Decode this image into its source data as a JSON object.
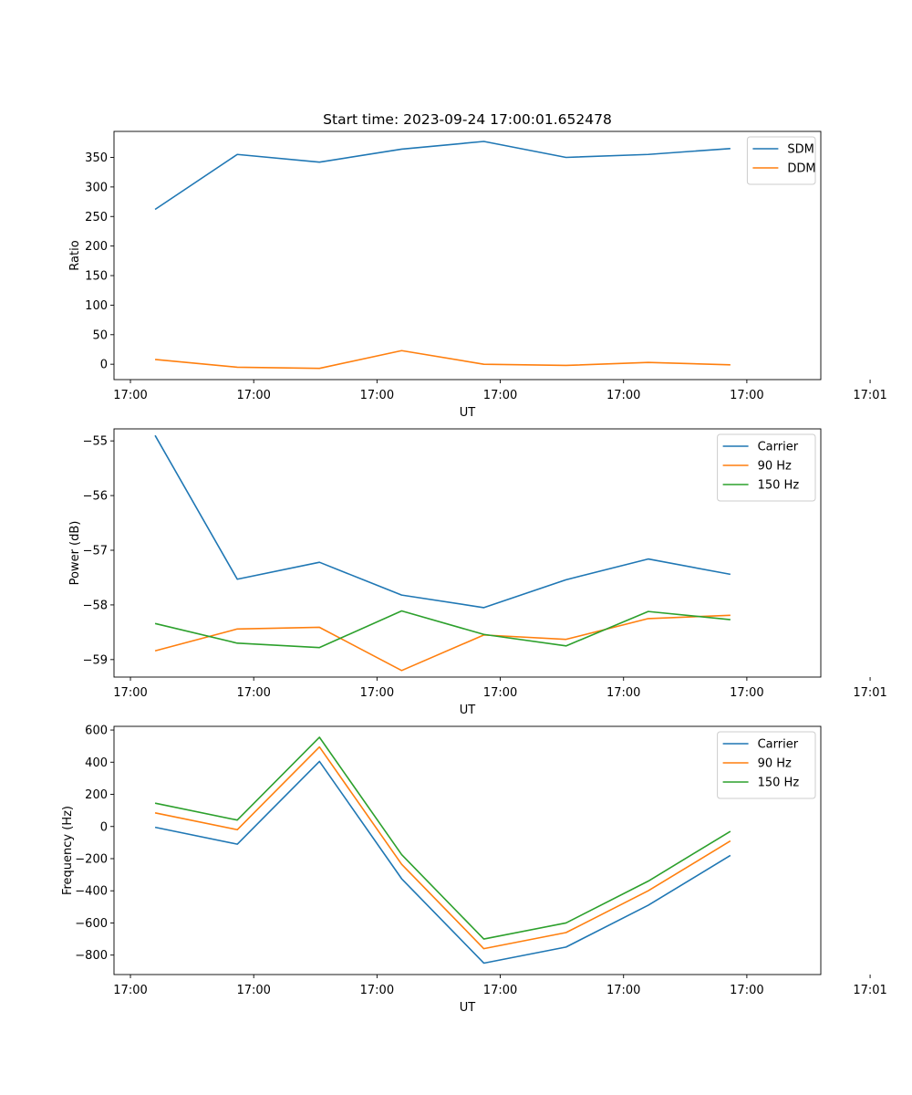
{
  "chart_data": [
    {
      "type": "line",
      "title": "Start time: 2023-09-24 17:00:01.652478",
      "xlabel": "UT",
      "ylabel": "Ratio",
      "legend": "top-right",
      "grid": false,
      "x": [
        1,
        2,
        3,
        4,
        5,
        6,
        7,
        8
      ],
      "xlim": [
        0.5,
        9.1
      ],
      "xticks": [
        0.7,
        2.2,
        3.7,
        5.2,
        6.7,
        8.2,
        9.7
      ],
      "xtick_labels": [
        "17:00",
        "17:00",
        "17:00",
        "17:00",
        "17:00",
        "17:00",
        "17:01"
      ],
      "ylim": [
        -26,
        394
      ],
      "yticks": [
        0,
        50,
        100,
        150,
        200,
        250,
        300,
        350
      ],
      "ytick_labels": [
        "0",
        "50",
        "100",
        "150",
        "200",
        "250",
        "300",
        "350"
      ],
      "series": [
        {
          "name": "SDM",
          "color": "#1f77b4",
          "values": [
            262,
            355,
            342,
            364,
            377,
            350,
            355,
            365
          ]
        },
        {
          "name": "DDM",
          "color": "#ff7f0e",
          "values": [
            8,
            -5,
            -7,
            23,
            0,
            -2,
            3,
            -1
          ]
        }
      ]
    },
    {
      "type": "line",
      "title": "",
      "xlabel": "UT",
      "ylabel": "Power (dB)",
      "legend": "top-right",
      "grid": false,
      "x": [
        1,
        2,
        3,
        4,
        5,
        6,
        7,
        8
      ],
      "xlim": [
        0.5,
        9.1
      ],
      "xticks": [
        0.7,
        2.2,
        3.7,
        5.2,
        6.7,
        8.2,
        9.7
      ],
      "xtick_labels": [
        "17:00",
        "17:00",
        "17:00",
        "17:00",
        "17:00",
        "17:00",
        "17:01"
      ],
      "ylim": [
        -59.32,
        -54.78
      ],
      "yticks": [
        -59,
        -58,
        -57,
        -56,
        -55
      ],
      "ytick_labels": [
        "−59",
        "−58",
        "−57",
        "−56",
        "−55"
      ],
      "series": [
        {
          "name": "Carrier",
          "color": "#1f77b4",
          "values": [
            -54.9,
            -57.53,
            -57.22,
            -57.82,
            -58.05,
            -57.54,
            -57.16,
            -57.44
          ]
        },
        {
          "name": "90 Hz",
          "color": "#ff7f0e",
          "values": [
            -58.84,
            -58.44,
            -58.41,
            -59.2,
            -58.55,
            -58.63,
            -58.25,
            -58.19
          ]
        },
        {
          "name": "150 Hz",
          "color": "#2ca02c",
          "values": [
            -58.34,
            -58.7,
            -58.78,
            -58.11,
            -58.54,
            -58.75,
            -58.12,
            -58.27
          ]
        }
      ]
    },
    {
      "type": "line",
      "title": "",
      "xlabel": "UT",
      "ylabel": "Frequency (Hz)",
      "legend": "top-right",
      "grid": false,
      "x": [
        1,
        2,
        3,
        4,
        5,
        6,
        7,
        8
      ],
      "xlim": [
        0.5,
        9.1
      ],
      "xticks": [
        0.7,
        2.2,
        3.7,
        5.2,
        6.7,
        8.2,
        9.7
      ],
      "xtick_labels": [
        "17:00",
        "17:00",
        "17:00",
        "17:00",
        "17:00",
        "17:00",
        "17:01"
      ],
      "ylim": [
        -921,
        623
      ],
      "yticks": [
        -800,
        -600,
        -400,
        -200,
        0,
        200,
        400,
        600
      ],
      "ytick_labels": [
        "−800",
        "−600",
        "−400",
        "−200",
        "0",
        "200",
        "400",
        "600"
      ],
      "series": [
        {
          "name": "Carrier",
          "color": "#1f77b4",
          "values": [
            -5,
            -110,
            405,
            -325,
            -850,
            -750,
            -490,
            -180
          ]
        },
        {
          "name": "90 Hz",
          "color": "#ff7f0e",
          "values": [
            85,
            -20,
            495,
            -235,
            -760,
            -660,
            -400,
            -90
          ]
        },
        {
          "name": "150 Hz",
          "color": "#2ca02c",
          "values": [
            145,
            40,
            555,
            -175,
            -700,
            -600,
            -340,
            -30
          ]
        }
      ]
    }
  ]
}
